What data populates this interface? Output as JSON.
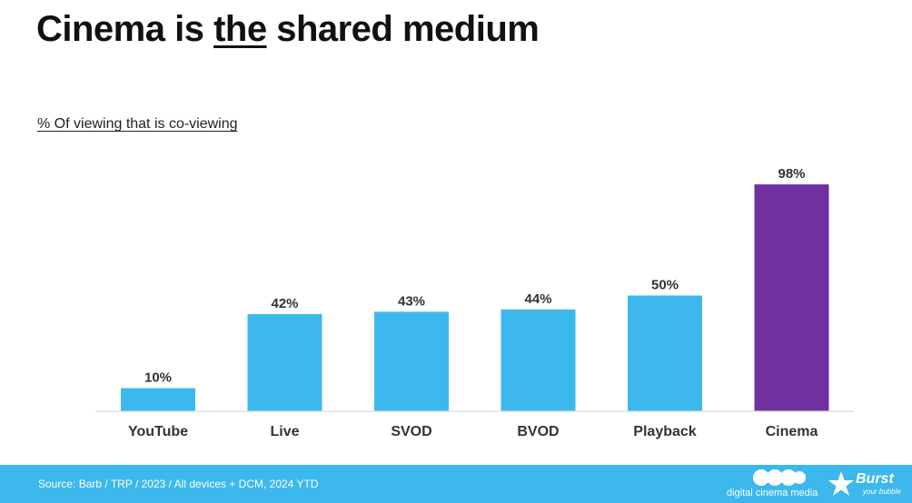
{
  "slide": {
    "title_pre": "Cinema is ",
    "title_emph": "the",
    "title_post": " shared medium",
    "source": "Source: Barb / TRP / 2023 / All devices + DCM, 2024 YTD",
    "brand_dcm": "digital cinema media",
    "brand_burst": "Burst",
    "brand_burst_tagline": "your bubble"
  },
  "colors": {
    "bar_default": "#3db8ec",
    "bar_highlight": "#7030a0",
    "footer": "#3db8ec",
    "text": "#333333"
  },
  "chart_data": {
    "type": "bar",
    "title": "% Of viewing that is co-viewing",
    "categories": [
      "YouTube",
      "Live",
      "SVOD",
      "BVOD",
      "Playback",
      "Cinema"
    ],
    "values": [
      10,
      42,
      43,
      44,
      50,
      98
    ],
    "value_labels": [
      "10%",
      "42%",
      "43%",
      "44%",
      "50%",
      "98%"
    ],
    "highlight_category": "Cinema",
    "ylim": [
      0,
      100
    ],
    "grid": false,
    "legend": "none"
  }
}
